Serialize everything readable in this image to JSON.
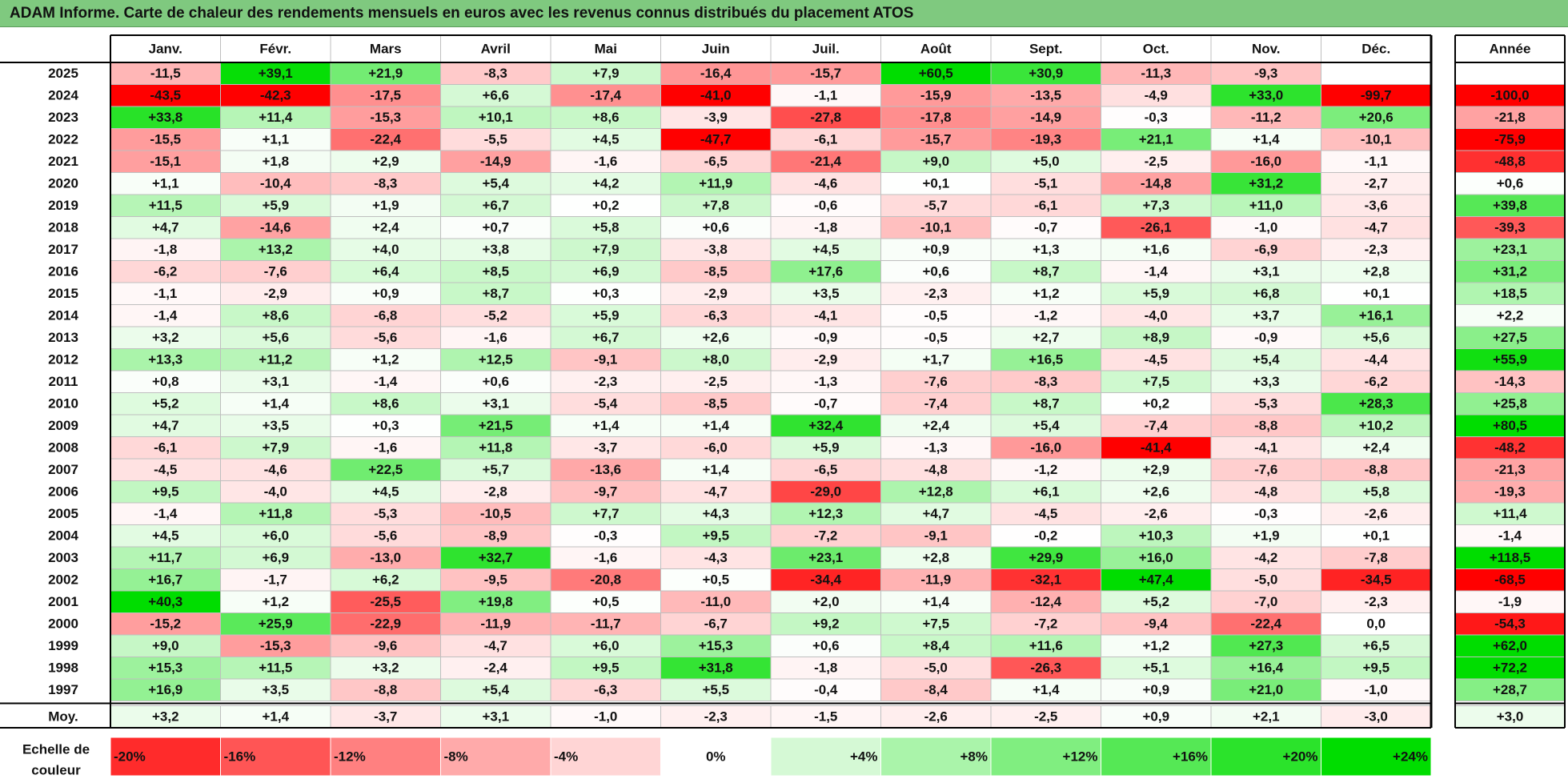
{
  "title": "ADAM Informe. Carte de chaleur des rendements mensuels en euros avec les revenus connus distribués du placement ATOS",
  "chart_data": {
    "type": "heatmap",
    "title": "ADAM Informe. Carte de chaleur des rendements mensuels en euros avec les revenus connus distribués du placement ATOS",
    "columns": [
      "Janv.",
      "Févr.",
      "Mars",
      "Avril",
      "Mai",
      "Juin",
      "Juil.",
      "Août",
      "Sept.",
      "Oct.",
      "Nov.",
      "Déc."
    ],
    "annual_header": "Année",
    "rows": [
      {
        "year": "2025",
        "values": [
          "-11,5",
          "+39,1",
          "+21,9",
          "-8,3",
          "+7,9",
          "-16,4",
          "-15,7",
          "+60,5",
          "+30,9",
          "-11,3",
          "-9,3",
          ""
        ],
        "annual": ""
      },
      {
        "year": "2024",
        "values": [
          "-43,5",
          "-42,3",
          "-17,5",
          "+6,6",
          "-17,4",
          "-41,0",
          "-1,1",
          "-15,9",
          "-13,5",
          "-4,9",
          "+33,0",
          "-99,7"
        ],
        "annual": "-100,0"
      },
      {
        "year": "2023",
        "values": [
          "+33,8",
          "+11,4",
          "-15,3",
          "+10,1",
          "+8,6",
          "-3,9",
          "-27,8",
          "-17,8",
          "-14,9",
          "-0,3",
          "-11,2",
          "+20,6"
        ],
        "annual": "-21,8"
      },
      {
        "year": "2022",
        "values": [
          "-15,5",
          "+1,1",
          "-22,4",
          "-5,5",
          "+4,5",
          "-47,7",
          "-6,1",
          "-15,7",
          "-19,3",
          "+21,1",
          "+1,4",
          "-10,1"
        ],
        "annual": "-75,9"
      },
      {
        "year": "2021",
        "values": [
          "-15,1",
          "+1,8",
          "+2,9",
          "-14,9",
          "-1,6",
          "-6,5",
          "-21,4",
          "+9,0",
          "+5,0",
          "-2,5",
          "-16,0",
          "-1,1"
        ],
        "annual": "-48,8"
      },
      {
        "year": "2020",
        "values": [
          "+1,1",
          "-10,4",
          "-8,3",
          "+5,4",
          "+4,2",
          "+11,9",
          "-4,6",
          "+0,1",
          "-5,1",
          "-14,8",
          "+31,2",
          "-2,7"
        ],
        "annual": "+0,6"
      },
      {
        "year": "2019",
        "values": [
          "+11,5",
          "+5,9",
          "+1,9",
          "+6,7",
          "+0,2",
          "+7,8",
          "-0,6",
          "-5,7",
          "-6,1",
          "+7,3",
          "+11,0",
          "-3,6"
        ],
        "annual": "+39,8"
      },
      {
        "year": "2018",
        "values": [
          "+4,7",
          "-14,6",
          "+2,4",
          "+0,7",
          "+5,8",
          "+0,6",
          "-1,8",
          "-10,1",
          "-0,7",
          "-26,1",
          "-1,0",
          "-4,7"
        ],
        "annual": "-39,3"
      },
      {
        "year": "2017",
        "values": [
          "-1,8",
          "+13,2",
          "+4,0",
          "+3,8",
          "+7,9",
          "-3,8",
          "+4,5",
          "+0,9",
          "+1,3",
          "+1,6",
          "-6,9",
          "-2,3"
        ],
        "annual": "+23,1"
      },
      {
        "year": "2016",
        "values": [
          "-6,2",
          "-7,6",
          "+6,4",
          "+8,5",
          "+6,9",
          "-8,5",
          "+17,6",
          "+0,6",
          "+8,7",
          "-1,4",
          "+3,1",
          "+2,8"
        ],
        "annual": "+31,2"
      },
      {
        "year": "2015",
        "values": [
          "-1,1",
          "-2,9",
          "+0,9",
          "+8,7",
          "+0,3",
          "-2,9",
          "+3,5",
          "-2,3",
          "+1,2",
          "+5,9",
          "+6,8",
          "+0,1"
        ],
        "annual": "+18,5"
      },
      {
        "year": "2014",
        "values": [
          "-1,4",
          "+8,6",
          "-6,8",
          "-5,2",
          "+5,9",
          "-6,3",
          "-4,1",
          "-0,5",
          "-1,2",
          "-4,0",
          "+3,7",
          "+16,1"
        ],
        "annual": "+2,2"
      },
      {
        "year": "2013",
        "values": [
          "+3,2",
          "+5,6",
          "-5,6",
          "-1,6",
          "+6,7",
          "+2,6",
          "-0,9",
          "-0,5",
          "+2,7",
          "+8,9",
          "-0,9",
          "+5,6"
        ],
        "annual": "+27,5"
      },
      {
        "year": "2012",
        "values": [
          "+13,3",
          "+11,2",
          "+1,2",
          "+12,5",
          "-9,1",
          "+8,0",
          "-2,9",
          "+1,7",
          "+16,5",
          "-4,5",
          "+5,4",
          "-4,4"
        ],
        "annual": "+55,9"
      },
      {
        "year": "2011",
        "values": [
          "+0,8",
          "+3,1",
          "-1,4",
          "+0,6",
          "-2,3",
          "-2,5",
          "-1,3",
          "-7,6",
          "-8,3",
          "+7,5",
          "+3,3",
          "-6,2"
        ],
        "annual": "-14,3"
      },
      {
        "year": "2010",
        "values": [
          "+5,2",
          "+1,4",
          "+8,6",
          "+3,1",
          "-5,4",
          "-8,5",
          "-0,7",
          "-7,4",
          "+8,7",
          "+0,2",
          "-5,3",
          "+28,3"
        ],
        "annual": "+25,8"
      },
      {
        "year": "2009",
        "values": [
          "+4,7",
          "+3,5",
          "+0,3",
          "+21,5",
          "+1,4",
          "+1,4",
          "+32,4",
          "+2,4",
          "+5,4",
          "-7,4",
          "-8,8",
          "+10,2"
        ],
        "annual": "+80,5"
      },
      {
        "year": "2008",
        "values": [
          "-6,1",
          "+7,9",
          "-1,6",
          "+11,8",
          "-3,7",
          "-6,0",
          "+5,9",
          "-1,3",
          "-16,0",
          "-41,4",
          "-4,1",
          "+2,4"
        ],
        "annual": "-48,2"
      },
      {
        "year": "2007",
        "values": [
          "-4,5",
          "-4,6",
          "+22,5",
          "+5,7",
          "-13,6",
          "+1,4",
          "-6,5",
          "-4,8",
          "-1,2",
          "+2,9",
          "-7,6",
          "-8,8"
        ],
        "annual": "-21,3"
      },
      {
        "year": "2006",
        "values": [
          "+9,5",
          "-4,0",
          "+4,5",
          "-2,8",
          "-9,7",
          "-4,7",
          "-29,0",
          "+12,8",
          "+6,1",
          "+2,6",
          "-4,8",
          "+5,8"
        ],
        "annual": "-19,3"
      },
      {
        "year": "2005",
        "values": [
          "-1,4",
          "+11,8",
          "-5,3",
          "-10,5",
          "+7,7",
          "+4,3",
          "+12,3",
          "+4,7",
          "-4,5",
          "-2,6",
          "-0,3",
          "-2,6"
        ],
        "annual": "+11,4"
      },
      {
        "year": "2004",
        "values": [
          "+4,5",
          "+6,0",
          "-5,6",
          "-8,9",
          "-0,3",
          "+9,5",
          "-7,2",
          "-9,1",
          "-0,2",
          "+10,3",
          "+1,9",
          "+0,1"
        ],
        "annual": "-1,4"
      },
      {
        "year": "2003",
        "values": [
          "+11,7",
          "+6,9",
          "-13,0",
          "+32,7",
          "-1,6",
          "-4,3",
          "+23,1",
          "+2,8",
          "+29,9",
          "+16,0",
          "-4,2",
          "-7,8"
        ],
        "annual": "+118,5"
      },
      {
        "year": "2002",
        "values": [
          "+16,7",
          "-1,7",
          "+6,2",
          "-9,5",
          "-20,8",
          "+0,5",
          "-34,4",
          "-11,9",
          "-32,1",
          "+47,4",
          "-5,0",
          "-34,5"
        ],
        "annual": "-68,5"
      },
      {
        "year": "2001",
        "values": [
          "+40,3",
          "+1,2",
          "-25,5",
          "+19,8",
          "+0,5",
          "-11,0",
          "+2,0",
          "+1,4",
          "-12,4",
          "+5,2",
          "-7,0",
          "-2,3"
        ],
        "annual": "-1,9"
      },
      {
        "year": "2000",
        "values": [
          "-15,2",
          "+25,9",
          "-22,9",
          "-11,9",
          "-11,7",
          "-6,7",
          "+9,2",
          "+7,5",
          "-7,2",
          "-9,4",
          "-22,4",
          "0,0"
        ],
        "annual": "-54,3"
      },
      {
        "year": "1999",
        "values": [
          "+9,0",
          "-15,3",
          "-9,6",
          "-4,7",
          "+6,0",
          "+15,3",
          "+0,6",
          "+8,4",
          "+11,6",
          "+1,2",
          "+27,3",
          "+6,5"
        ],
        "annual": "+62,0"
      },
      {
        "year": "1998",
        "values": [
          "+15,3",
          "+11,5",
          "+3,2",
          "-2,4",
          "+9,5",
          "+31,8",
          "-1,8",
          "-5,0",
          "-26,3",
          "+5,1",
          "+16,4",
          "+9,5"
        ],
        "annual": "+72,2"
      },
      {
        "year": "1997",
        "values": [
          "+16,9",
          "+3,5",
          "-8,8",
          "+5,4",
          "-6,3",
          "+5,5",
          "-0,4",
          "-8,4",
          "+1,4",
          "+0,9",
          "+21,0",
          "-1,0"
        ],
        "annual": "+28,7"
      }
    ],
    "average": {
      "label": "Moy.",
      "values": [
        "+3,2",
        "+1,4",
        "-3,7",
        "+3,1",
        "-1,0",
        "-2,3",
        "-1,5",
        "-2,6",
        "-2,5",
        "+0,9",
        "+2,1",
        "-3,0"
      ],
      "annual": "+3,0"
    },
    "scale": {
      "label_line1": "Echelle de",
      "label_line2": "couleur",
      "steps": [
        "-20%",
        "-16%",
        "-12%",
        "-8%",
        "-4%",
        "0%",
        "+4%",
        "+8%",
        "+12%",
        "+16%",
        "+20%",
        "+24%"
      ]
    },
    "colors": {
      "neg_max": "#ff0000",
      "pos_max": "#00dd00",
      "neutral": "#ffffff",
      "title_bg": "#7fc97f"
    }
  }
}
